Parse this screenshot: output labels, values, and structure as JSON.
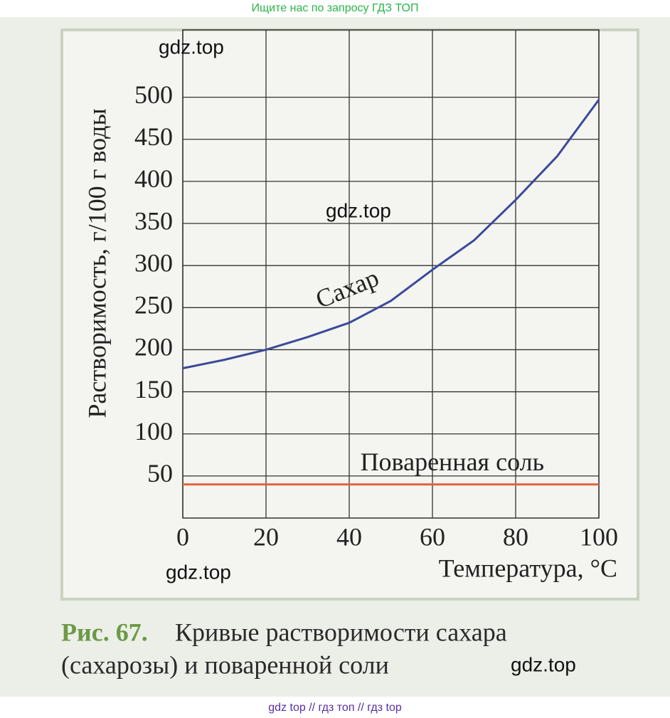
{
  "header": {
    "banner": "Ищите нас по запросу ГДЗ ТОП"
  },
  "watermarks": [
    "gdz.top",
    "gdz.top",
    "gdz.top",
    "gdz.top"
  ],
  "chart_data": {
    "type": "line",
    "xlabel": "Температура, °C",
    "ylabel": "Растворимость, г/100 г воды",
    "x": [
      0,
      10,
      20,
      30,
      40,
      50,
      60,
      70,
      80,
      90,
      100
    ],
    "series": [
      {
        "name": "Сахар",
        "color": "#3b4a9a",
        "values": [
          178,
          188,
          200,
          215,
          232,
          258,
          295,
          330,
          378,
          430,
          497
        ]
      },
      {
        "name": "Поваренная соль",
        "color": "#e0623e",
        "values": [
          40,
          40,
          40,
          40,
          40,
          40,
          40,
          40,
          40,
          40,
          40
        ]
      }
    ],
    "xlim": [
      0,
      100
    ],
    "xticks": [
      0,
      20,
      40,
      60,
      80,
      100
    ],
    "ylim": [
      0,
      580
    ],
    "yticks": [
      50,
      100,
      150,
      200,
      250,
      300,
      350,
      400,
      450,
      500
    ],
    "grid": true
  },
  "caption": {
    "label": "Рис. 67.",
    "line1": "Кривые растворимости сахара",
    "line2": "(сахарозы) и поваренной соли"
  },
  "footer": {
    "links": "gdz top  //  гдз топ  //  гдз top"
  }
}
